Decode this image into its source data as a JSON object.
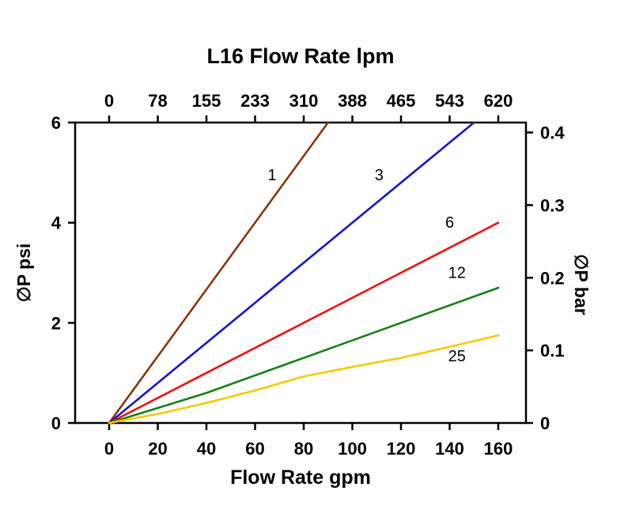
{
  "chart_data": {
    "type": "line",
    "title": "L16 Flow Rate lpm",
    "xlabel": "Flow Rate gpm",
    "ylabel_left": "∅P psi",
    "ylabel_right": "∅P bar",
    "xlim": [
      0,
      160
    ],
    "ylim": [
      0,
      6
    ],
    "bar_to_psi": 14.5038,
    "grid": false,
    "x_bottom_ticks": [
      0,
      20,
      40,
      60,
      80,
      100,
      120,
      140,
      160
    ],
    "x_top_ticks": [
      0,
      78,
      155,
      233,
      310,
      388,
      465,
      543,
      620
    ],
    "y_left_ticks": [
      0,
      2,
      4,
      6
    ],
    "y_right_ticks": [
      "0",
      "0.1",
      "0.2",
      "0.3",
      "0.4"
    ],
    "axis_color": "#000000",
    "background_color": "#ffffff",
    "series": [
      {
        "name": "1",
        "color": "#8B3508",
        "points": [
          [
            0,
            0
          ],
          [
            30,
            2.0
          ],
          [
            60,
            4.0
          ],
          [
            90,
            6.0
          ]
        ],
        "label_pos": [
          67,
          4.85
        ]
      },
      {
        "name": "3",
        "color": "#1414D0",
        "points": [
          [
            0,
            0
          ],
          [
            50,
            2.0
          ],
          [
            100,
            4.0
          ],
          [
            150,
            6.0
          ]
        ],
        "label_pos": [
          111,
          4.85
        ]
      },
      {
        "name": "6",
        "color": "#EE1111",
        "points": [
          [
            0,
            0
          ],
          [
            40,
            1.0
          ],
          [
            80,
            2.0
          ],
          [
            120,
            3.0
          ],
          [
            160,
            4.0
          ]
        ],
        "label_pos": [
          140,
          3.9
        ]
      },
      {
        "name": "12",
        "color": "#158015",
        "points": [
          [
            0,
            0
          ],
          [
            40,
            0.6
          ],
          [
            80,
            1.3
          ],
          [
            120,
            2.0
          ],
          [
            160,
            2.7
          ]
        ],
        "label_pos": [
          143,
          2.9
        ]
      },
      {
        "name": "25",
        "color": "#F7C900",
        "points": [
          [
            0,
            0
          ],
          [
            20,
            0.18
          ],
          [
            40,
            0.4
          ],
          [
            60,
            0.65
          ],
          [
            80,
            0.93
          ],
          [
            100,
            1.12
          ],
          [
            120,
            1.3
          ],
          [
            140,
            1.52
          ],
          [
            160,
            1.75
          ]
        ],
        "label_pos": [
          143,
          1.23
        ]
      }
    ]
  }
}
